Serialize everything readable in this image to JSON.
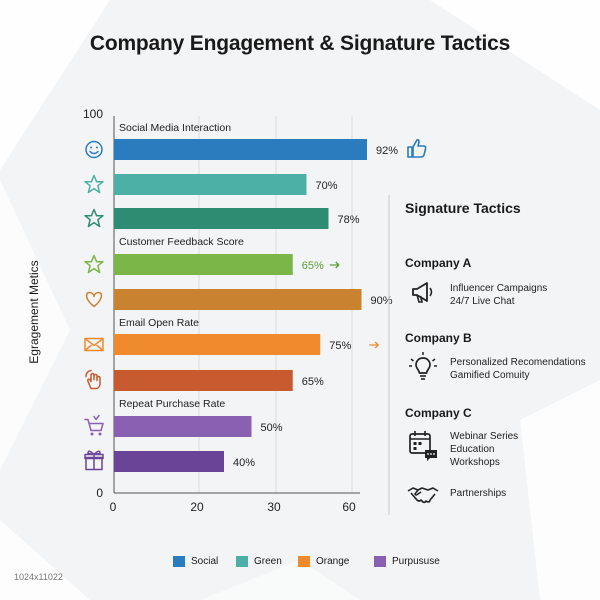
{
  "title": "Company Engagement & Signature Tactics",
  "chart_data": {
    "type": "bar",
    "orientation": "horizontal",
    "title": "Company Engagement & Signature Tactics",
    "ylabel": "Egragement Metics",
    "xlabel": "",
    "x_ticks": [
      "0",
      "20",
      "30",
      "60"
    ],
    "y_ticks": [
      "100",
      "0"
    ],
    "grid": "vertical",
    "legend_position": "bottom",
    "group_labels": [
      "Social Media Interaction",
      "Customer Feedback Score",
      "Email Open Rate",
      "Repeat Purchase Rate"
    ],
    "bars": [
      {
        "value": 92,
        "label": "92%",
        "color": "#2b7bbf",
        "icon": "smiley-icon",
        "marker": "thumbs-up-icon"
      },
      {
        "value": 70,
        "label": "70%",
        "color": "#4cb0a7",
        "icon": "star-icon",
        "marker": ""
      },
      {
        "value": 78,
        "label": "78%",
        "color": "#2d8c72",
        "icon": "star-icon",
        "marker": ""
      },
      {
        "value": 65,
        "label": "65%",
        "color": "#7ab648",
        "icon": "star-icon",
        "marker": "arrow-right-icon",
        "label_color": "#5c9e37"
      },
      {
        "value": 90,
        "label": "90%",
        "color": "#c9822f",
        "icon": "heart-icon",
        "marker": ""
      },
      {
        "value": 75,
        "label": "75%",
        "color": "#ef8b2c",
        "icon": "envelope-icon",
        "marker": "arrow-right-icon"
      },
      {
        "value": 65,
        "label": "65%",
        "color": "#c85a2f",
        "icon": "hand-icon",
        "marker": ""
      },
      {
        "value": 50,
        "label": "50%",
        "color": "#8960b2",
        "icon": "cart-icon",
        "marker": ""
      },
      {
        "value": 40,
        "label": "40%",
        "color": "#6a4496",
        "icon": "gift-icon",
        "marker": ""
      }
    ],
    "legend": [
      {
        "name": "Social",
        "color": "#2b7bbf"
      },
      {
        "name": "Green",
        "color": "#4cb0a7"
      },
      {
        "name": "Orange",
        "color": "#ef8b2c"
      },
      {
        "name": "Purpususe",
        "color": "#8960b2"
      }
    ]
  },
  "tactics": {
    "heading": "Signature Tactics",
    "companies": [
      {
        "name": "Company A",
        "icon": "megaphone-icon",
        "items": [
          "Influencer Campaigns",
          "24/7 Live Chat"
        ]
      },
      {
        "name": "Company B",
        "icon": "lightbulb-icon",
        "items": [
          "Personalized Recomendations",
          "Gamified Comuity"
        ]
      },
      {
        "name": "Company C",
        "icon": "calendar-chat-icon",
        "items": [
          "Webinar Series",
          "Education",
          "Workshops"
        ]
      },
      {
        "name": "",
        "icon": "handshake-icon",
        "items": [
          "Partnerships"
        ]
      }
    ]
  },
  "footnote": "1024x11022"
}
